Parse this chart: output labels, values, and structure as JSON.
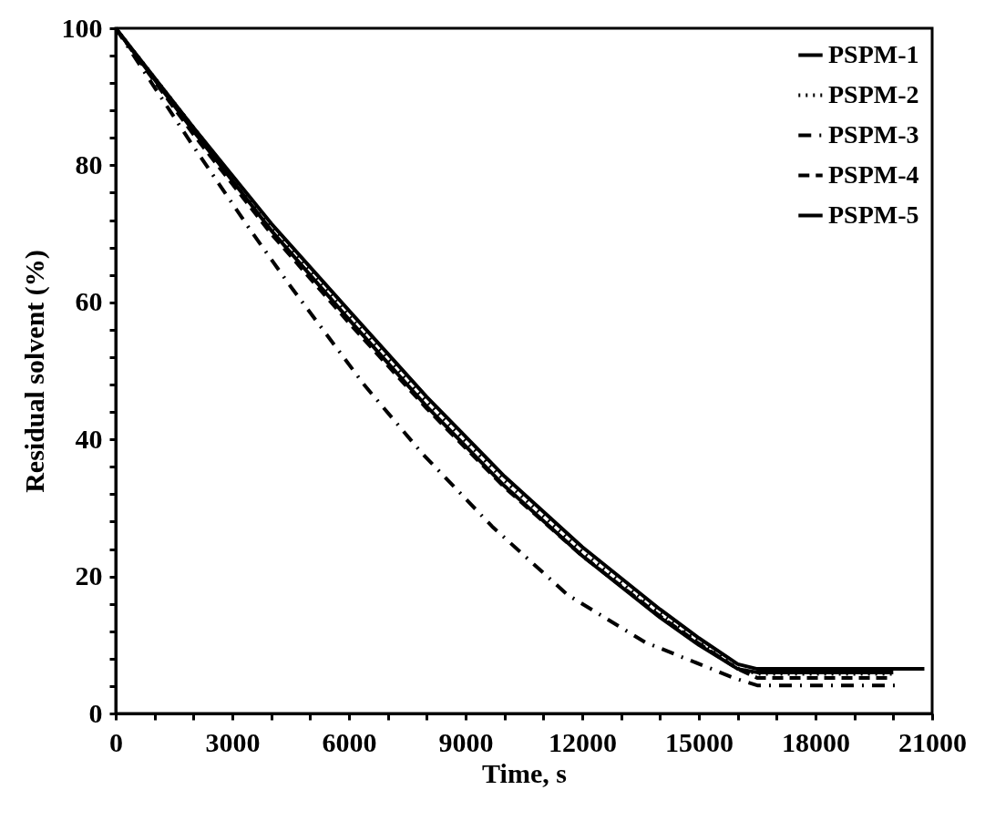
{
  "chart_data": {
    "type": "line",
    "xlabel": "Time, s",
    "ylabel": "Residual solvent (%)",
    "xlim": [
      0,
      21000
    ],
    "ylim": [
      0,
      100
    ],
    "xticks": [
      0,
      {
        "value": 1000,
        "label": null
      },
      {
        "value": 2000,
        "label": null
      },
      3000,
      {
        "value": 4000,
        "label": null
      },
      {
        "value": 5000,
        "label": null
      },
      6000,
      {
        "value": 7000,
        "label": null
      },
      {
        "value": 8000,
        "label": null
      },
      9000,
      {
        "value": 10000,
        "label": null
      },
      {
        "value": 11000,
        "label": null
      },
      12000,
      {
        "value": 13000,
        "label": null
      },
      {
        "value": 14000,
        "label": null
      },
      15000,
      {
        "value": 16000,
        "label": null
      },
      {
        "value": 17000,
        "label": null
      },
      18000,
      {
        "value": 19000,
        "label": null
      },
      {
        "value": 20000,
        "label": null
      },
      21000
    ],
    "yticks": [
      0,
      {
        "value": 4,
        "label": null
      },
      {
        "value": 8,
        "label": null
      },
      {
        "value": 12,
        "label": null
      },
      {
        "value": 16,
        "label": null
      },
      20,
      {
        "value": 24,
        "label": null
      },
      {
        "value": 28,
        "label": null
      },
      {
        "value": 32,
        "label": null
      },
      {
        "value": 36,
        "label": null
      },
      40,
      {
        "value": 44,
        "label": null
      },
      {
        "value": 48,
        "label": null
      },
      {
        "value": 52,
        "label": null
      },
      {
        "value": 56,
        "label": null
      },
      60,
      {
        "value": 64,
        "label": null
      },
      {
        "value": 68,
        "label": null
      },
      {
        "value": 72,
        "label": null
      },
      {
        "value": 76,
        "label": null
      },
      80,
      {
        "value": 84,
        "label": null
      },
      {
        "value": 88,
        "label": null
      },
      {
        "value": 92,
        "label": null
      },
      {
        "value": 96,
        "label": null
      },
      100
    ],
    "grid": false,
    "legend": "top right",
    "marker": "none",
    "series": [
      {
        "name": "PSPM-1",
        "color": "#000000",
        "line_style": "solid",
        "x": [
          0,
          2000,
          4000,
          6000,
          8000,
          10000,
          12000,
          14000,
          15000,
          16000,
          16500,
          20000
        ],
        "values": [
          100,
          85,
          70.5,
          57.5,
          44.8,
          33.2,
          23,
          14,
          10,
          6.5,
          6,
          6
        ]
      },
      {
        "name": "PSPM-2",
        "color": "#000000",
        "line_style": "dotted",
        "x": [
          0,
          2000,
          4000,
          6000,
          8000,
          10000,
          12000,
          14000,
          15000,
          16000,
          16500,
          20000
        ],
        "values": [
          100,
          85.5,
          71,
          58,
          45.5,
          34,
          23.6,
          14.6,
          10.5,
          6.6,
          5.8,
          5.8
        ]
      },
      {
        "name": "PSPM-3",
        "color": "#000000",
        "line_style": "dashdot",
        "x": [
          0,
          1945,
          3470,
          4475,
          6400,
          7875,
          9680,
          11625,
          13615,
          15940,
          16500,
          20100
        ],
        "values": [
          100,
          83.2,
          70.5,
          62.5,
          47.9,
          38,
          27.3,
          17.3,
          10.4,
          5.1,
          4.1,
          4.1
        ]
      },
      {
        "name": "PSPM-4",
        "color": "#000000",
        "line_style": "dashed",
        "x": [
          0,
          2000,
          4000,
          6000,
          8000,
          10000,
          12000,
          14000,
          15000,
          16000,
          16500,
          20000
        ],
        "values": [
          100,
          84.5,
          70,
          57,
          44.5,
          33,
          23,
          14.2,
          10.2,
          6.5,
          5.2,
          5.2
        ]
      },
      {
        "name": "PSPM-5",
        "color": "#000000",
        "line_style": "solid",
        "x": [
          0,
          2000,
          4000,
          6000,
          8000,
          10000,
          12000,
          14000,
          15000,
          16000,
          16500,
          20800
        ],
        "values": [
          100,
          85.5,
          71.5,
          58.8,
          46.2,
          34.6,
          24.3,
          15.2,
          11,
          7.2,
          6.5,
          6.5
        ]
      }
    ]
  }
}
